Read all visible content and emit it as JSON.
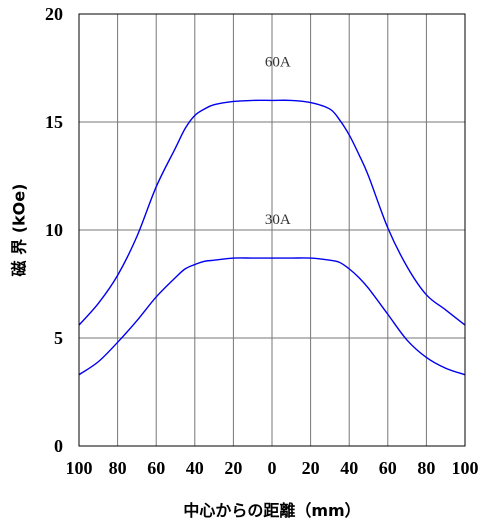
{
  "chart_data": {
    "type": "line",
    "title": "",
    "xlabel": "中心からの距離（mm）",
    "ylabel": "磁 界 (kOe)",
    "x_tick_labels": [
      "100",
      "80",
      "60",
      "40",
      "20",
      "0",
      "20",
      "40",
      "60",
      "80",
      "100"
    ],
    "y_ticks": [
      0,
      5,
      10,
      15,
      20
    ],
    "xlim": [
      -100,
      100
    ],
    "ylim": [
      0,
      20
    ],
    "grid": true,
    "line_color": "#0000ee",
    "series": [
      {
        "name": "60A",
        "x": [
          -100,
          -90,
          -80,
          -70,
          -60,
          -50,
          -45,
          -40,
          -35,
          -30,
          -20,
          -10,
          0,
          10,
          20,
          30,
          35,
          40,
          45,
          50,
          60,
          70,
          80,
          90,
          100
        ],
        "y": [
          5.6,
          6.6,
          7.9,
          9.7,
          12.0,
          13.8,
          14.7,
          15.3,
          15.6,
          15.8,
          15.95,
          16.0,
          16.0,
          16.0,
          15.9,
          15.6,
          15.1,
          14.4,
          13.5,
          12.5,
          10.1,
          8.3,
          7.0,
          6.3,
          5.6
        ],
        "label": "60A"
      },
      {
        "name": "30A",
        "x": [
          -100,
          -90,
          -80,
          -70,
          -60,
          -50,
          -45,
          -40,
          -35,
          -30,
          -20,
          -10,
          0,
          10,
          20,
          30,
          35,
          40,
          45,
          50,
          60,
          70,
          80,
          90,
          100
        ],
        "y": [
          3.3,
          3.9,
          4.8,
          5.8,
          6.9,
          7.8,
          8.2,
          8.4,
          8.55,
          8.6,
          8.7,
          8.7,
          8.7,
          8.7,
          8.7,
          8.6,
          8.5,
          8.2,
          7.8,
          7.3,
          6.1,
          4.9,
          4.1,
          3.6,
          3.3
        ],
        "label": "30A"
      }
    ]
  }
}
